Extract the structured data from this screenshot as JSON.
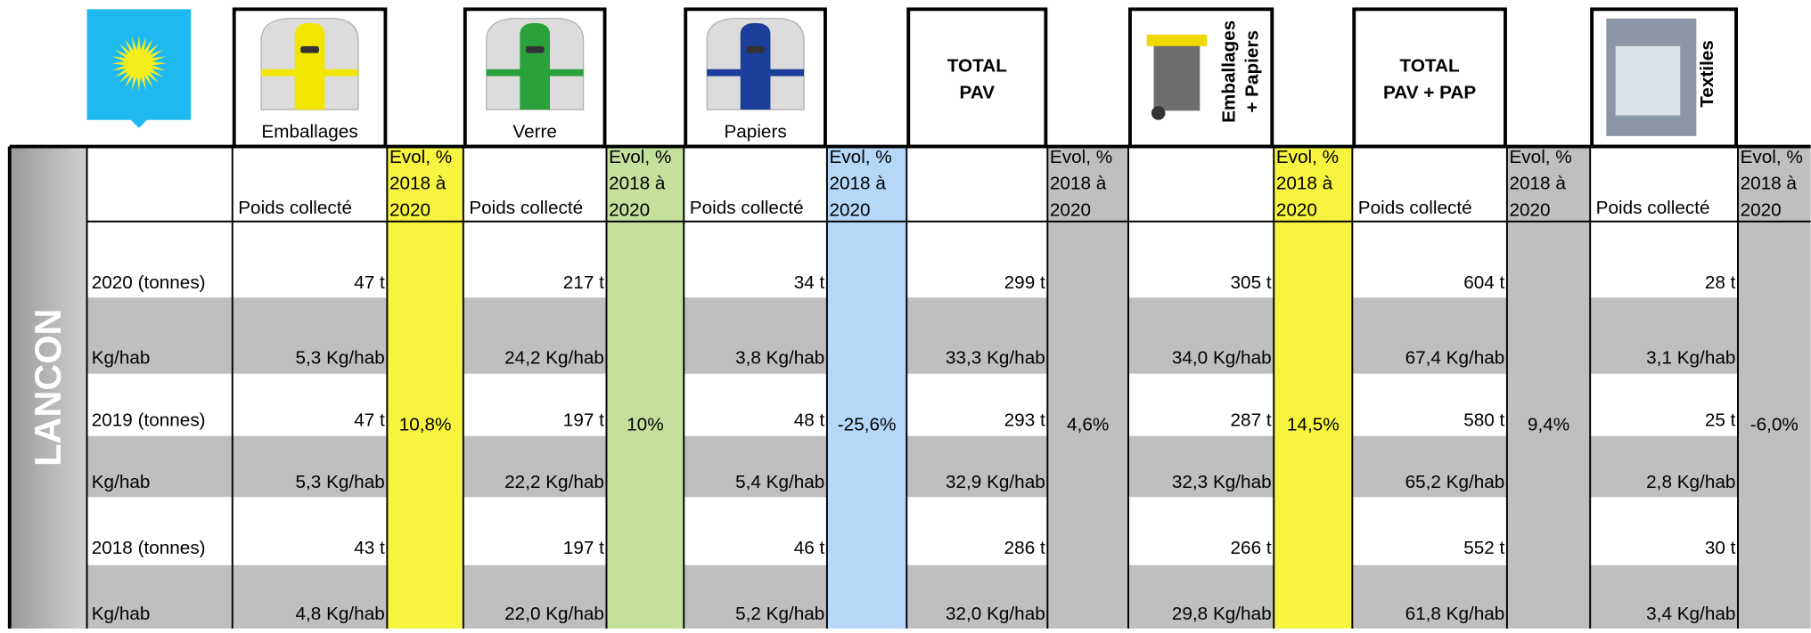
{
  "commune": "LANCON",
  "row_labels": [
    "2020 (tonnes)",
    "Kg/hab",
    "2019 (tonnes)",
    "Kg/hab",
    "2018 (tonnes)",
    "Kg/hab"
  ],
  "evol_label": [
    "Evol, %",
    "2018 à",
    "2020"
  ],
  "groups": [
    {
      "label": [
        "Emballages"
      ],
      "measure": "Poids collecté",
      "values": [
        "47 t",
        "5,3 Kg/hab",
        "47 t",
        "5,3 Kg/hab",
        "43 t",
        "4,8 Kg/hab"
      ],
      "evol": "10,8%",
      "evol_color": "#f7f43f"
    },
    {
      "label": [
        "Verre"
      ],
      "measure": "Poids collecté",
      "values": [
        "217 t",
        "24,2 Kg/hab",
        "197 t",
        "22,2 Kg/hab",
        "197 t",
        "22,0 Kg/hab"
      ],
      "evol": "10%",
      "evol_color": "#c3e19d"
    },
    {
      "label": [
        "Papiers"
      ],
      "measure": "Poids collecté",
      "values": [
        "34 t",
        "3,8 Kg/hab",
        "48 t",
        "5,4 Kg/hab",
        "46 t",
        "5,2 Kg/hab"
      ],
      "evol": "-25,6%",
      "evol_color": "#b5d8f9"
    },
    {
      "label": [
        "TOTAL",
        "PAV"
      ],
      "values": [
        "299 t",
        "33,3 Kg/hab",
        "293 t",
        "32,9 Kg/hab",
        "286 t",
        "32,0 Kg/hab"
      ],
      "evol": "4,6%",
      "evol_color": "#bfbfbf"
    },
    {
      "label": [
        "Emballages",
        "+ Papiers"
      ],
      "values": [
        "305 t",
        "34,0 Kg/hab",
        "287 t",
        "32,3 Kg/hab",
        "266 t",
        "29,8 Kg/hab"
      ],
      "evol": "14,5%",
      "evol_color": "#f7f43f"
    },
    {
      "label": [
        "TOTAL",
        "PAV + PAP"
      ],
      "measure": "Poids collecté",
      "values": [
        "604 t",
        "67,4 Kg/hab",
        "580 t",
        "65,2 Kg/hab",
        "552 t",
        "61,8 Kg/hab"
      ],
      "evol": "9,4%",
      "evol_color": "#bfbfbf"
    },
    {
      "label": [
        "Textiles"
      ],
      "measure": "Poids collecté",
      "values": [
        "28 t",
        "3,1 Kg/hab",
        "25 t",
        "2,8 Kg/hab",
        "30 t",
        "3,4 Kg/hab"
      ],
      "evol": "-6,0%",
      "evol_color": "#bfbfbf"
    }
  ]
}
